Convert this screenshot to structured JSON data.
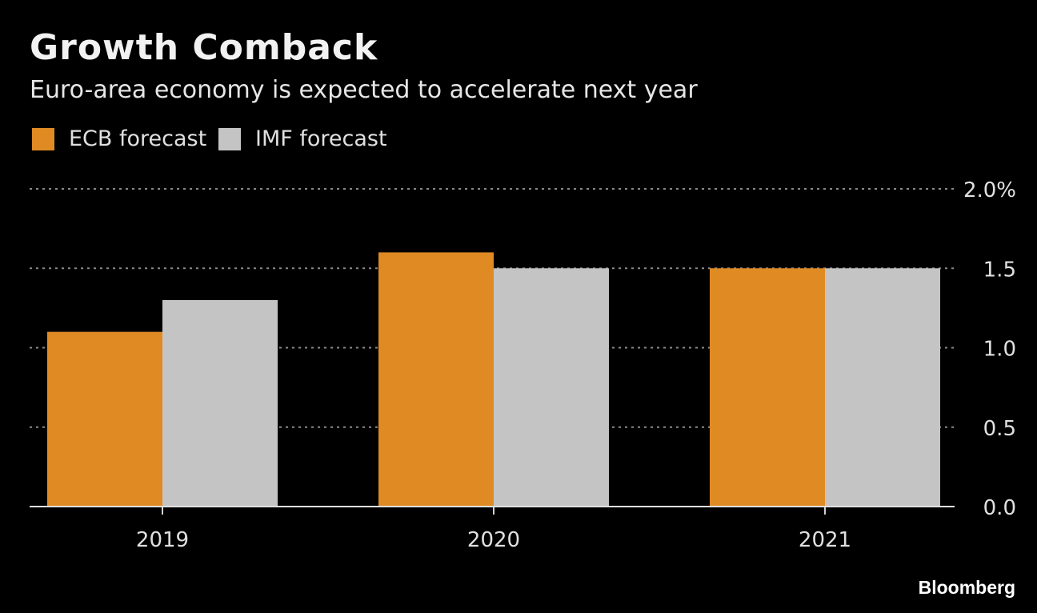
{
  "chart_data": {
    "type": "bar",
    "title": "Growth Comback",
    "subtitle": "Euro-area economy is expected to accelerate next year",
    "categories": [
      "2019",
      "2020",
      "2021"
    ],
    "series": [
      {
        "name": "ECB forecast",
        "color": "#e08a24",
        "values": [
          1.1,
          1.6,
          1.5
        ]
      },
      {
        "name": "IMF forecast",
        "color": "#c4c4c4",
        "values": [
          1.3,
          1.5,
          1.5
        ]
      }
    ],
    "ylim": [
      0,
      2.0
    ],
    "yticks": [
      0,
      0.5,
      1.0,
      1.5,
      2.0
    ],
    "ytick_labels": [
      "0.0",
      "0.5",
      "1.0",
      "1.5",
      "2.0%"
    ],
    "xlabel": "",
    "ylabel": "",
    "grid": true,
    "legend_position": "top-left",
    "y_axis_side": "right"
  },
  "source": "Bloomberg"
}
